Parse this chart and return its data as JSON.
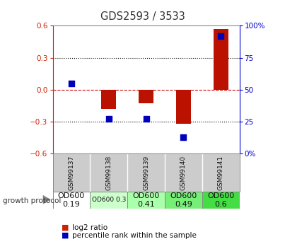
{
  "title": "GDS2593 / 3533",
  "samples": [
    "GSM99137",
    "GSM99138",
    "GSM99139",
    "GSM99140",
    "GSM99141"
  ],
  "log2_ratio": [
    0.0,
    -0.18,
    -0.13,
    -0.32,
    0.57
  ],
  "percentile_rank_raw": [
    55,
    27,
    27,
    13,
    92
  ],
  "ylim_left": [
    -0.6,
    0.6
  ],
  "ylim_right": [
    0,
    100
  ],
  "yticks_left": [
    -0.6,
    -0.3,
    0.0,
    0.3,
    0.6
  ],
  "yticks_right": [
    0,
    25,
    50,
    75,
    100
  ],
  "bar_color": "#bb1100",
  "scatter_color": "#0000bb",
  "bg_color": "#ffffff",
  "plot_bg": "#ffffff",
  "zero_line_color": "#cc0000",
  "protocol_labels": [
    "OD600\n0.19",
    "OD600 0.3",
    "OD600\n0.41",
    "OD600\n0.49",
    "OD600\n0.6"
  ],
  "protocol_colors": [
    "#ffffff",
    "#ccffcc",
    "#aaffaa",
    "#77ee77",
    "#44dd44"
  ],
  "protocol_text_sizes": [
    8,
    6.5,
    8,
    8,
    8
  ],
  "title_color": "#333333",
  "left_axis_color": "#cc2200",
  "right_axis_color": "#0000cc",
  "sample_bg_color": "#cccccc",
  "legend_bar_color": "#cc2200",
  "legend_scatter_color": "#0000bb"
}
